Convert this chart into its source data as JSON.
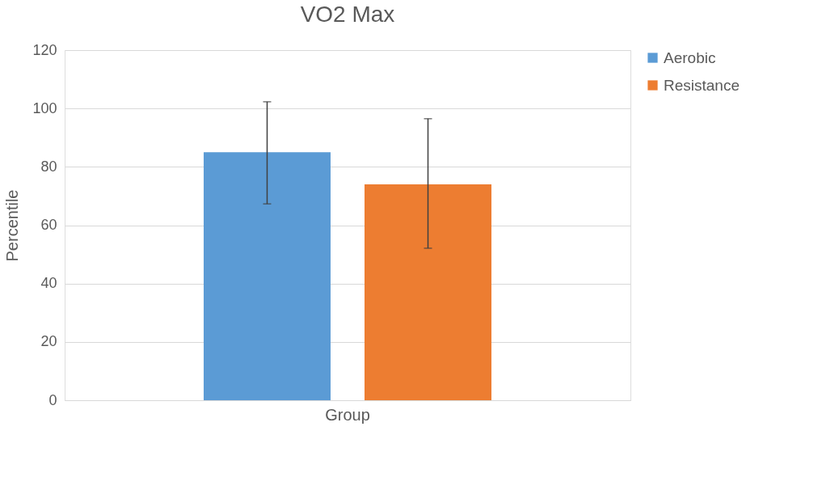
{
  "chart_data": {
    "type": "bar",
    "title": "VO2 Max",
    "xlabel": null,
    "ylabel": "Percentile",
    "categories": [
      "Group"
    ],
    "series": [
      {
        "name": "Aerobic",
        "color": "#5b9bd5",
        "values": [
          85
        ],
        "errors": [
          [
            67.3,
            102.3
          ]
        ]
      },
      {
        "name": "Resistance",
        "color": "#ed7d31",
        "values": [
          74
        ],
        "errors": [
          [
            52.1,
            96.5
          ]
        ]
      }
    ],
    "ylim": [
      0,
      120
    ],
    "yticks": [
      0,
      20,
      40,
      60,
      80,
      100,
      120
    ],
    "grid": "y",
    "legend": "right"
  }
}
